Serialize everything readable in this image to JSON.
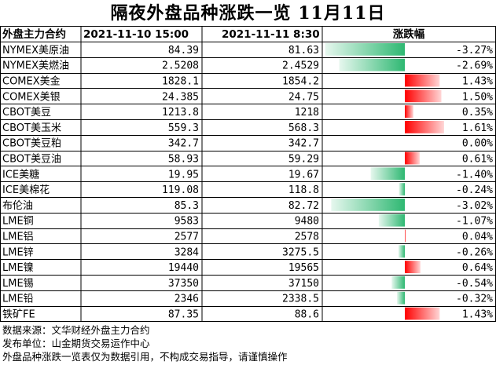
{
  "title": "隔夜外盘品种涨跌一览 11月11日",
  "headers": {
    "name": "外盘主力合约",
    "prev": "2021-11-10 15:00",
    "curr": "2021-11-11 8:30",
    "change": "涨跌幅"
  },
  "colors": {
    "up": "#ff0000",
    "down": "#2eb872"
  },
  "chart_data": {
    "type": "table",
    "columns": [
      "外盘主力合约",
      "2021-11-10 15:00",
      "2021-11-11 8:30",
      "涨跌幅"
    ],
    "rows": [
      {
        "name": "NYMEX美原油",
        "prev": "84.39",
        "curr": "81.63",
        "pct_text": "-3.27%",
        "pct": -3.27
      },
      {
        "name": "NYMEX美燃油",
        "prev": "2.5208",
        "curr": "2.4529",
        "pct_text": "-2.69%",
        "pct": -2.69
      },
      {
        "name": "COMEX美金",
        "prev": "1828.1",
        "curr": "1854.2",
        "pct_text": "1.43%",
        "pct": 1.43
      },
      {
        "name": "COMEX美银",
        "prev": "24.385",
        "curr": "24.75",
        "pct_text": "1.50%",
        "pct": 1.5
      },
      {
        "name": "CBOT美豆",
        "prev": "1213.8",
        "curr": "1218",
        "pct_text": "0.35%",
        "pct": 0.35
      },
      {
        "name": "CBOT美玉米",
        "prev": "559.3",
        "curr": "568.3",
        "pct_text": "1.61%",
        "pct": 1.61
      },
      {
        "name": "CBOT美豆粕",
        "prev": "342.7",
        "curr": "342.7",
        "pct_text": "0.00%",
        "pct": 0.0
      },
      {
        "name": "CBOT美豆油",
        "prev": "58.93",
        "curr": "59.29",
        "pct_text": "0.61%",
        "pct": 0.61
      },
      {
        "name": "ICE美糖",
        "prev": "19.95",
        "curr": "19.67",
        "pct_text": "-1.40%",
        "pct": -1.4
      },
      {
        "name": "ICE美棉花",
        "prev": "119.08",
        "curr": "118.8",
        "pct_text": "-0.24%",
        "pct": -0.24
      },
      {
        "name": "布伦油",
        "prev": "85.3",
        "curr": "82.72",
        "pct_text": "-3.02%",
        "pct": -3.02
      },
      {
        "name": "LME铜",
        "prev": "9583",
        "curr": "9480",
        "pct_text": "-1.07%",
        "pct": -1.07
      },
      {
        "name": "LME铝",
        "prev": "2577",
        "curr": "2578",
        "pct_text": "0.04%",
        "pct": 0.04
      },
      {
        "name": "LME锌",
        "prev": "3284",
        "curr": "3275.5",
        "pct_text": "-0.26%",
        "pct": -0.26
      },
      {
        "name": "LME镍",
        "prev": "19440",
        "curr": "19565",
        "pct_text": "0.64%",
        "pct": 0.64
      },
      {
        "name": "LME锡",
        "prev": "37350",
        "curr": "37150",
        "pct_text": "-0.54%",
        "pct": -0.54
      },
      {
        "name": "LME铅",
        "prev": "2346",
        "curr": "2338.5",
        "pct_text": "-0.32%",
        "pct": -0.32
      },
      {
        "name": "铁矿FE",
        "prev": "87.35",
        "curr": "88.6",
        "pct_text": "1.43%",
        "pct": 1.43
      }
    ]
  },
  "footer": {
    "source": "数据来源：文华财经外盘主力合约",
    "publisher": "发布单位：山金期货交易运作中心",
    "disclaimer": "外盘品种涨跌一览表仅为数据引用，不构成交易指导，请谨慎操作"
  }
}
